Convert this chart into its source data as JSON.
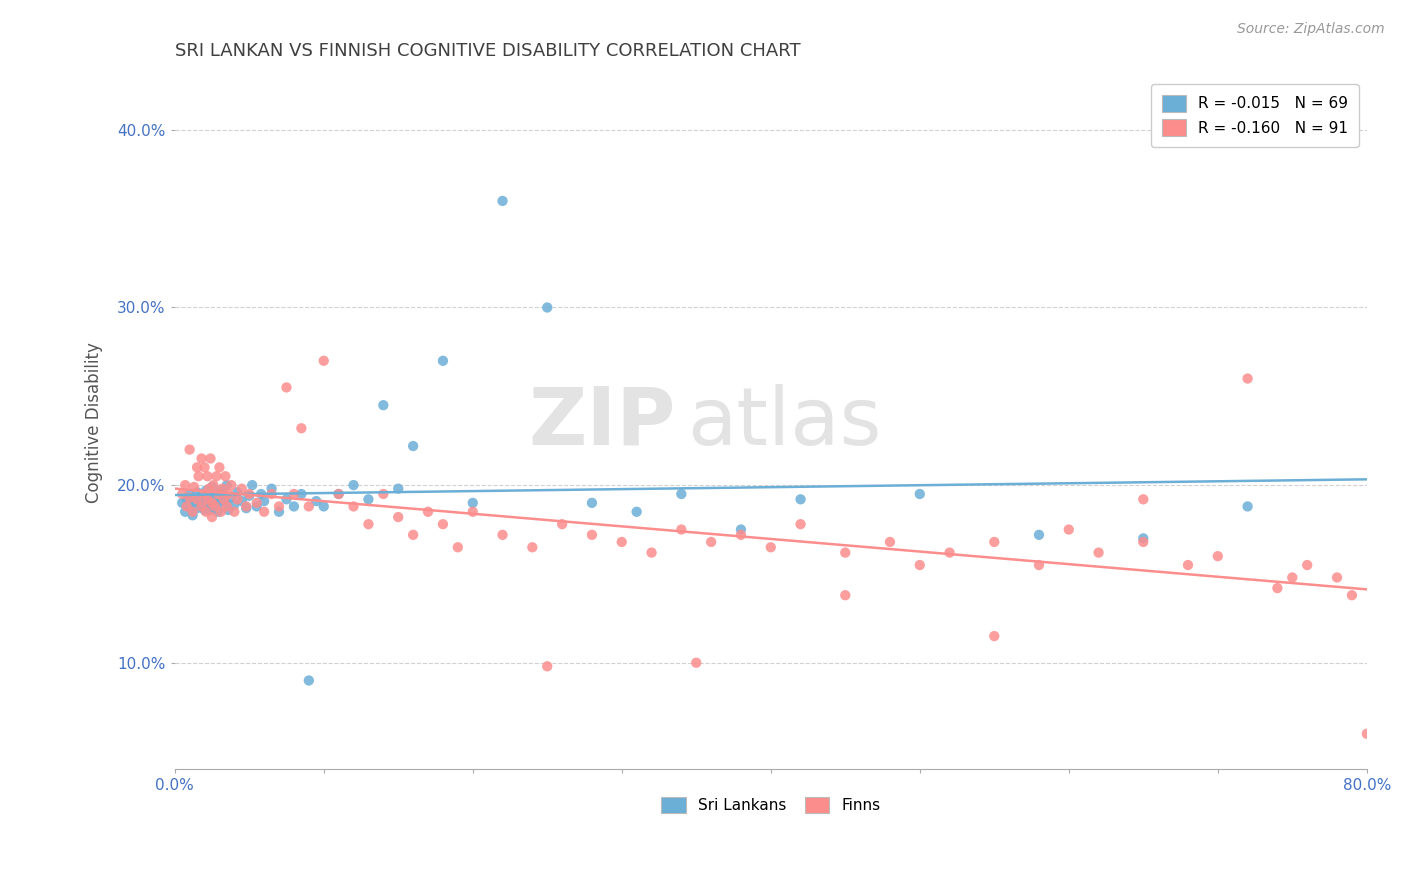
{
  "title": "SRI LANKAN VS FINNISH COGNITIVE DISABILITY CORRELATION CHART",
  "source": "Source: ZipAtlas.com",
  "ylabel": "Cognitive Disability",
  "xlim": [
    0.0,
    0.8
  ],
  "ylim": [
    0.04,
    0.43
  ],
  "sri_lankan_color": "#6baed6",
  "finn_color": "#fc8d8d",
  "sri_lankan_R": -0.015,
  "sri_lankan_N": 69,
  "finn_R": -0.16,
  "finn_N": 91,
  "legend_label_1": "R = -0.015   N = 69",
  "legend_label_2": "R = -0.160   N = 91",
  "bottom_legend_1": "Sri Lankans",
  "bottom_legend_2": "Finns",
  "watermark_zip": "ZIP",
  "watermark_atlas": "atlas",
  "background_color": "#ffffff",
  "grid_color": "#cccccc",
  "title_color": "#404040",
  "axis_label_color": "#4472c4",
  "sri_lankans_x": [
    0.005,
    0.007,
    0.008,
    0.01,
    0.01,
    0.012,
    0.013,
    0.015,
    0.015,
    0.016,
    0.018,
    0.018,
    0.02,
    0.02,
    0.021,
    0.022,
    0.022,
    0.023,
    0.024,
    0.025,
    0.025,
    0.026,
    0.027,
    0.028,
    0.029,
    0.03,
    0.031,
    0.032,
    0.033,
    0.034,
    0.035,
    0.036,
    0.038,
    0.04,
    0.042,
    0.045,
    0.048,
    0.05,
    0.052,
    0.055,
    0.058,
    0.06,
    0.065,
    0.07,
    0.075,
    0.08,
    0.085,
    0.09,
    0.095,
    0.1,
    0.11,
    0.12,
    0.13,
    0.14,
    0.15,
    0.16,
    0.18,
    0.2,
    0.22,
    0.25,
    0.28,
    0.31,
    0.34,
    0.38,
    0.42,
    0.5,
    0.58,
    0.65,
    0.72
  ],
  "sri_lankans_y": [
    0.19,
    0.185,
    0.192,
    0.195,
    0.188,
    0.183,
    0.191,
    0.196,
    0.187,
    0.193,
    0.189,
    0.194,
    0.186,
    0.192,
    0.197,
    0.188,
    0.195,
    0.191,
    0.186,
    0.193,
    0.199,
    0.187,
    0.194,
    0.19,
    0.185,
    0.192,
    0.197,
    0.188,
    0.195,
    0.191,
    0.2,
    0.186,
    0.193,
    0.189,
    0.196,
    0.191,
    0.187,
    0.194,
    0.2,
    0.188,
    0.195,
    0.191,
    0.198,
    0.185,
    0.192,
    0.188,
    0.195,
    0.09,
    0.191,
    0.188,
    0.195,
    0.2,
    0.192,
    0.245,
    0.198,
    0.222,
    0.27,
    0.19,
    0.36,
    0.3,
    0.19,
    0.185,
    0.195,
    0.175,
    0.192,
    0.195,
    0.172,
    0.17,
    0.188
  ],
  "finns_x": [
    0.005,
    0.007,
    0.008,
    0.01,
    0.01,
    0.012,
    0.013,
    0.015,
    0.015,
    0.016,
    0.018,
    0.018,
    0.02,
    0.02,
    0.021,
    0.022,
    0.022,
    0.023,
    0.024,
    0.025,
    0.025,
    0.026,
    0.027,
    0.028,
    0.029,
    0.03,
    0.031,
    0.032,
    0.033,
    0.034,
    0.035,
    0.036,
    0.038,
    0.04,
    0.042,
    0.045,
    0.048,
    0.05,
    0.055,
    0.06,
    0.065,
    0.07,
    0.075,
    0.08,
    0.085,
    0.09,
    0.1,
    0.11,
    0.12,
    0.13,
    0.14,
    0.15,
    0.16,
    0.17,
    0.18,
    0.19,
    0.2,
    0.22,
    0.24,
    0.26,
    0.28,
    0.3,
    0.32,
    0.34,
    0.36,
    0.38,
    0.4,
    0.42,
    0.45,
    0.48,
    0.5,
    0.52,
    0.55,
    0.58,
    0.6,
    0.62,
    0.65,
    0.68,
    0.7,
    0.72,
    0.74,
    0.76,
    0.78,
    0.79,
    0.8,
    0.35,
    0.25,
    0.45,
    0.55,
    0.65,
    0.75
  ],
  "finns_y": [
    0.195,
    0.2,
    0.188,
    0.22,
    0.193,
    0.185,
    0.199,
    0.21,
    0.192,
    0.205,
    0.215,
    0.188,
    0.195,
    0.21,
    0.185,
    0.192,
    0.205,
    0.198,
    0.215,
    0.182,
    0.19,
    0.2,
    0.188,
    0.205,
    0.195,
    0.21,
    0.185,
    0.198,
    0.192,
    0.205,
    0.188,
    0.195,
    0.2,
    0.185,
    0.192,
    0.198,
    0.188,
    0.195,
    0.19,
    0.185,
    0.195,
    0.188,
    0.255,
    0.195,
    0.232,
    0.188,
    0.27,
    0.195,
    0.188,
    0.178,
    0.195,
    0.182,
    0.172,
    0.185,
    0.178,
    0.165,
    0.185,
    0.172,
    0.165,
    0.178,
    0.172,
    0.168,
    0.162,
    0.175,
    0.168,
    0.172,
    0.165,
    0.178,
    0.162,
    0.168,
    0.155,
    0.162,
    0.168,
    0.155,
    0.175,
    0.162,
    0.168,
    0.155,
    0.16,
    0.26,
    0.142,
    0.155,
    0.148,
    0.138,
    0.06,
    0.1,
    0.098,
    0.138,
    0.115,
    0.192,
    0.148
  ]
}
